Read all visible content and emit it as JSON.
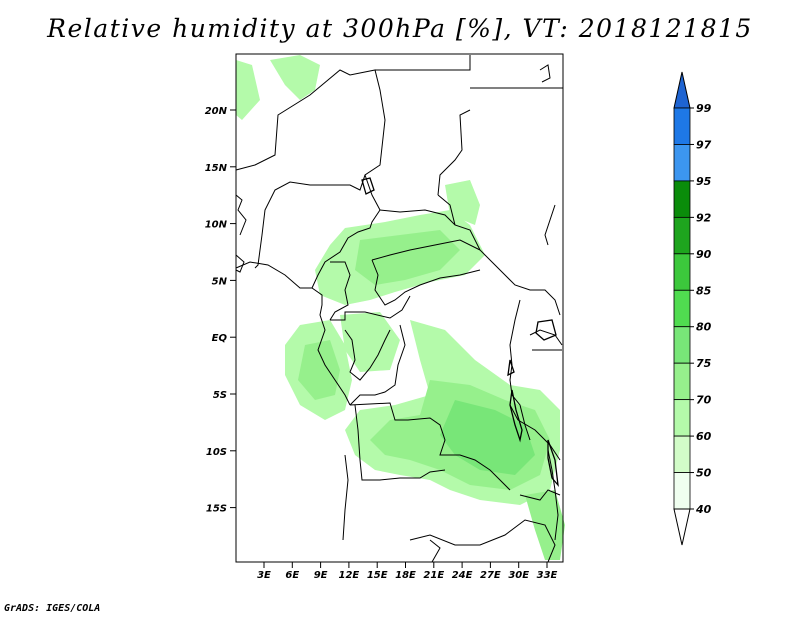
{
  "title": "Relative humidity at 300hPa [%], VT: 2018121815",
  "credit": "GrADS: IGES/COLA",
  "map": {
    "lat_labels": [
      "20N",
      "15N",
      "10N",
      "5N",
      "EQ",
      "5S",
      "10S",
      "15S"
    ],
    "lon_labels": [
      "3E",
      "6E",
      "9E",
      "12E",
      "15E",
      "18E",
      "21E",
      "24E",
      "27E",
      "30E",
      "33E"
    ],
    "border_color": "#000000"
  },
  "colorbar": {
    "labels": [
      "99",
      "97",
      "95",
      "92",
      "90",
      "85",
      "80",
      "75",
      "70",
      "60",
      "50",
      "40"
    ],
    "colors": [
      "#1e64d2",
      "#1e78e6",
      "#3c96f0",
      "#0a8c0a",
      "#1ea51e",
      "#3cc83c",
      "#50dc50",
      "#78e678",
      "#96f08c",
      "#b4faaa",
      "#d2fcc8",
      "#f0fff0"
    ]
  }
}
